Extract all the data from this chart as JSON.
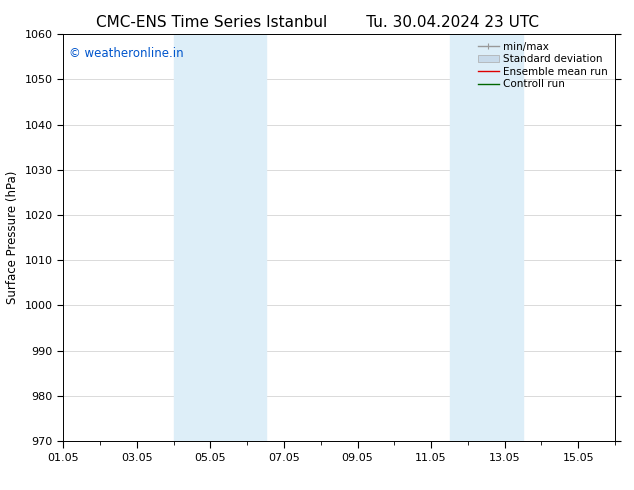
{
  "title_left": "CMC-ENS Time Series Istanbul",
  "title_right": "Tu. 30.04.2024 23 UTC",
  "ylabel": "Surface Pressure (hPa)",
  "ylim": [
    970,
    1060
  ],
  "yticks": [
    970,
    980,
    990,
    1000,
    1010,
    1020,
    1030,
    1040,
    1050,
    1060
  ],
  "xlim": [
    0,
    15
  ],
  "xtick_labels": [
    "01.05",
    "03.05",
    "05.05",
    "07.05",
    "09.05",
    "11.05",
    "13.05",
    "15.05"
  ],
  "xtick_positions": [
    0,
    2,
    4,
    6,
    8,
    10,
    12,
    14
  ],
  "shaded_bands": [
    {
      "x_start": 3.0,
      "x_end": 4.0,
      "color": "#ddeef8"
    },
    {
      "x_start": 4.0,
      "x_end": 5.5,
      "color": "#ddeef8"
    },
    {
      "x_start": 10.5,
      "x_end": 11.5,
      "color": "#ddeef8"
    },
    {
      "x_start": 11.5,
      "x_end": 12.5,
      "color": "#ddeef8"
    }
  ],
  "watermark_text": "© weatheronline.in",
  "watermark_color": "#0055cc",
  "watermark_fontsize": 8.5,
  "legend_entries": [
    {
      "label": "min/max",
      "color": "#999999"
    },
    {
      "label": "Standard deviation",
      "color": "#c8daea"
    },
    {
      "label": "Ensemble mean run",
      "color": "#dd0000"
    },
    {
      "label": "Controll run",
      "color": "#006600"
    }
  ],
  "background_color": "#ffffff",
  "plot_bg_color": "#ffffff",
  "grid_color": "#cccccc",
  "title_fontsize": 11,
  "axis_label_fontsize": 8.5,
  "tick_fontsize": 8,
  "legend_fontsize": 7.5
}
